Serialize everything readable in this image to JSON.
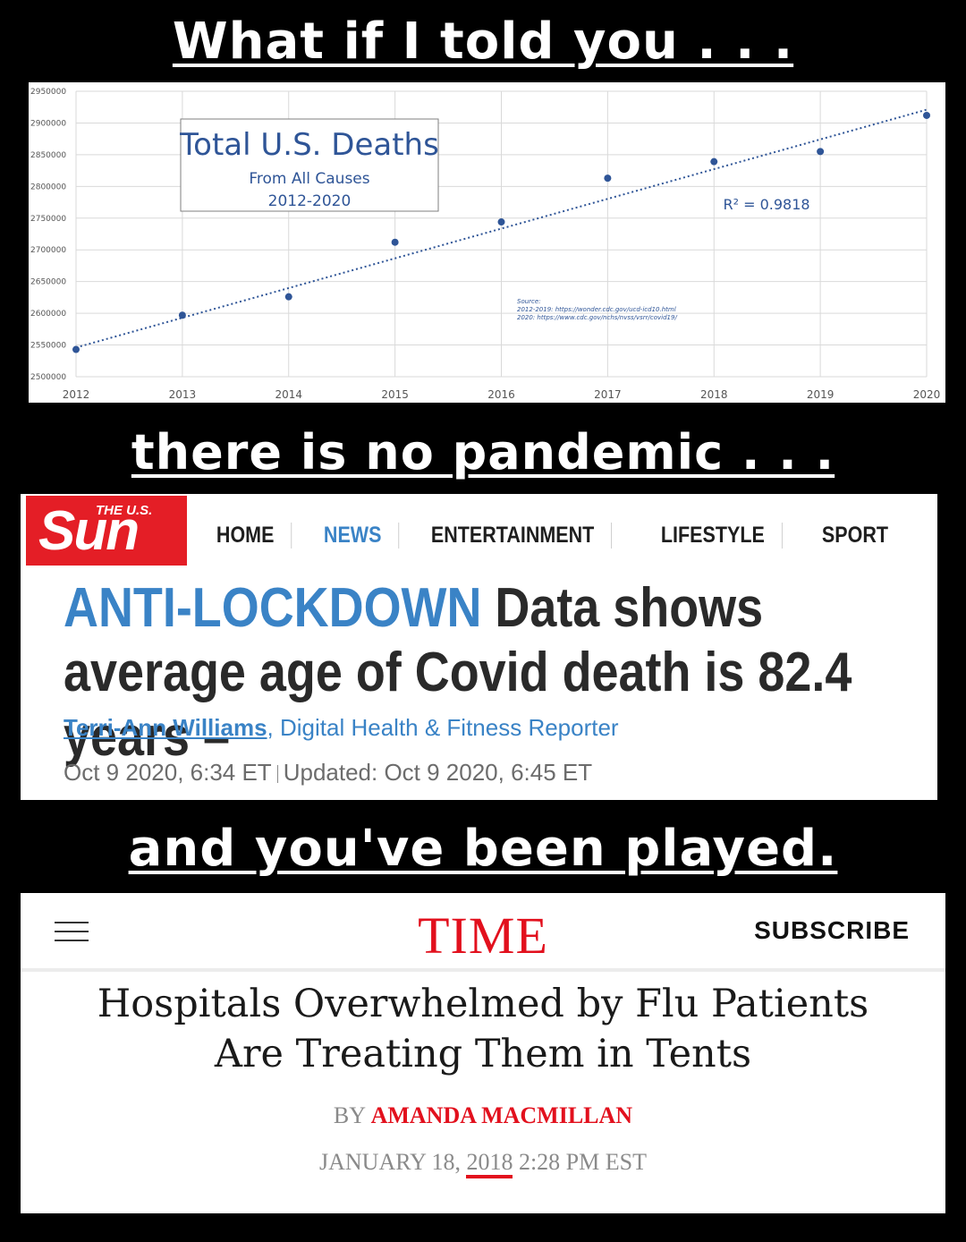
{
  "captions": {
    "top": "What if I told you . . .",
    "middle": "there is no pandemic . . .",
    "bottom": "and you've been played."
  },
  "chart": {
    "title": "Total U.S. Deaths",
    "subtitle_1": "From All Causes",
    "subtitle_2": "2012-2020",
    "r_squared": "R² = 0.9818",
    "source_lines": [
      "Source:",
      "2012-2019: https://wonder.cdc.gov/ucd-icd10.html",
      "2020: https://www.cdc.gov/nchs/nvss/vsrr/covid19/"
    ],
    "colors": {
      "points": "#2f5597",
      "trend": "#2f5597",
      "title": "#2f5597",
      "grid": "#d9d9d9"
    }
  },
  "chart_data": {
    "type": "scatter",
    "title": "Total U.S. Deaths",
    "subtitle": "From All Causes 2012-2020",
    "x": [
      2012,
      2013,
      2014,
      2015,
      2016,
      2017,
      2018,
      2019,
      2020
    ],
    "y": [
      2543000,
      2597000,
      2626000,
      2712000,
      2744000,
      2813000,
      2839000,
      2855000,
      2912000
    ],
    "xlim": [
      2012,
      2020
    ],
    "ylim": [
      2500000,
      2950000
    ],
    "y_ticks": [
      2500000,
      2550000,
      2600000,
      2650000,
      2700000,
      2750000,
      2800000,
      2850000,
      2900000,
      2950000
    ],
    "x_ticks": [
      2012,
      2013,
      2014,
      2015,
      2016,
      2017,
      2018,
      2019,
      2020
    ],
    "trendline": {
      "type": "linear",
      "start": 2546000,
      "end": 2921000,
      "label": "R² = 0.9818"
    },
    "grid": true
  },
  "sun": {
    "logo_top": "THE U.S.",
    "logo_main": "Sun",
    "nav": [
      "HOME",
      "NEWS",
      "ENTERTAINMENT",
      "LIFESTYLE",
      "SPORT"
    ],
    "kicker": "ANTI-LOCKDOWN",
    "headline_rest": " Data shows average age of Covid death is 82.4 years –",
    "author": "Terri-Ann Williams",
    "author_role": ", Digital Health & Fitness Reporter",
    "date_published": "Oct 9 2020, 6:34 ET",
    "date_updated": "Updated: Oct 9 2020, 6:45 ET",
    "colors": {
      "brand": "#e41e26",
      "accent": "#3a83c6"
    }
  },
  "time": {
    "logo": "TIME",
    "subscribe": "SUBSCRIBE",
    "headline_line1": "Hospitals Overwhelmed by Flu Patients",
    "headline_line2": "Are Treating Them in Tents",
    "by": "BY ",
    "author": "AMANDA MACMILLAN",
    "date_prefix": "JANUARY 18, ",
    "date_year": "2018",
    "date_suffix": " 2:28 PM EST",
    "colors": {
      "brand": "#e2101d"
    }
  }
}
